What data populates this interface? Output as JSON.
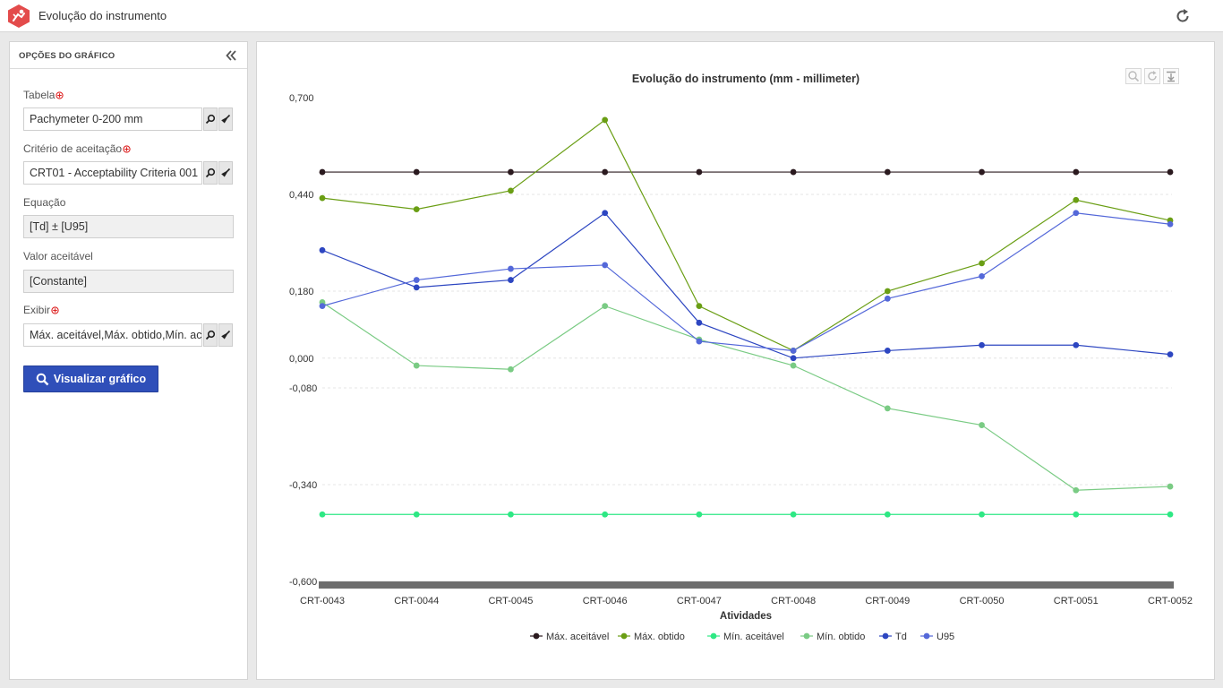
{
  "app": {
    "title": "Evolução do instrumento"
  },
  "panel": {
    "title": "OPÇÕES DO GRÁFICO",
    "fields": {
      "tabela": {
        "label": "Tabela",
        "value": "Pachymeter 0-200 mm"
      },
      "criterio": {
        "label": "Critério de aceitação",
        "value": "CRT01 - Acceptability Criteria 001"
      },
      "equacao": {
        "label": "Equação",
        "value": "[Td] ± [U95]"
      },
      "valor": {
        "label": "Valor aceitável",
        "value": "[Constante]"
      },
      "exibir": {
        "label": "Exibir",
        "value": "Máx. aceitável,Máx. obtido,Mín. aceitável,Mín. obtido,Td,U95"
      }
    },
    "button_label": "Visualizar gráfico"
  },
  "colors": {
    "accent": "#2f4fb9",
    "logo": "#e34b4b"
  },
  "icons": {
    "refresh": "refresh-icon",
    "collapse": "double-chevron-left-icon",
    "search": "search-icon",
    "clear": "broom-icon",
    "zoom": "zoom-icon",
    "reset": "reset-zoom-icon",
    "export": "export-icon"
  },
  "chart_data": {
    "type": "line",
    "title": "Evolução do instrumento (mm - millimeter)",
    "xlabel": "Atividades",
    "ylabel": "",
    "ylim": [
      -0.6,
      0.7
    ],
    "y_ticks": [
      0.7,
      0.44,
      0.18,
      0.0,
      -0.08,
      -0.34,
      -0.6
    ],
    "y_tick_labels": [
      "0,700",
      "0,440",
      "0,180",
      "0,000",
      "-0,080",
      "-0,340",
      "-0,600"
    ],
    "categories": [
      "CRT-0043",
      "CRT-0044",
      "CRT-0045",
      "CRT-0046",
      "CRT-0047",
      "CRT-0048",
      "CRT-0049",
      "CRT-0050",
      "CRT-0051",
      "CRT-0052"
    ],
    "grid": true,
    "legend_position": "bottom",
    "series": [
      {
        "name": "Máx. aceitável",
        "color": "#2b1a1f",
        "values": [
          0.5,
          0.5,
          0.5,
          0.5,
          0.5,
          0.5,
          0.5,
          0.5,
          0.5,
          0.5
        ]
      },
      {
        "name": "Máx. obtido",
        "color": "#6a9e14",
        "values": [
          0.43,
          0.4,
          0.45,
          0.64,
          0.14,
          0.02,
          0.18,
          0.255,
          0.425,
          0.37
        ]
      },
      {
        "name": "Mín. aceitável",
        "color": "#2ee884",
        "values": [
          -0.42,
          -0.42,
          -0.42,
          -0.42,
          -0.42,
          -0.42,
          -0.42,
          -0.42,
          -0.42,
          -0.42
        ]
      },
      {
        "name": "Mín. obtido",
        "color": "#7acb84",
        "values": [
          0.15,
          -0.02,
          -0.03,
          0.14,
          0.05,
          -0.02,
          -0.135,
          -0.18,
          -0.355,
          -0.345
        ]
      },
      {
        "name": "Td",
        "color": "#2d46c1",
        "values": [
          0.29,
          0.19,
          0.21,
          0.39,
          0.095,
          0.0,
          0.02,
          0.035,
          0.035,
          0.01
        ]
      },
      {
        "name": "U95",
        "color": "#5468d9",
        "values": [
          0.14,
          0.21,
          0.24,
          0.25,
          0.045,
          0.02,
          0.16,
          0.22,
          0.39,
          0.36
        ]
      }
    ]
  }
}
